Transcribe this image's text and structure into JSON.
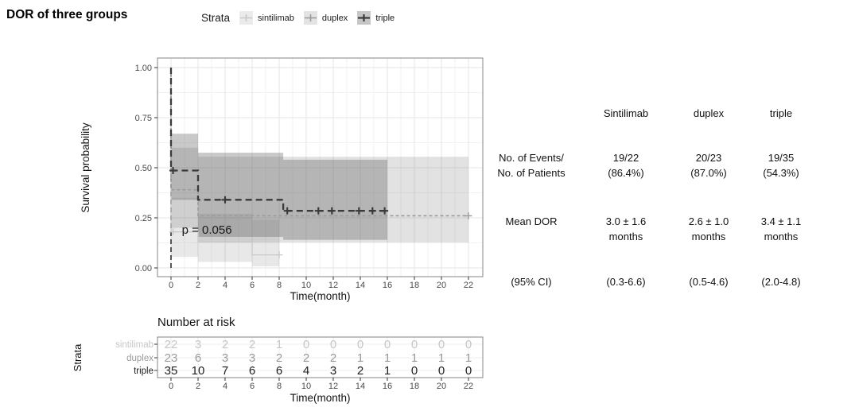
{
  "title": "DOR of three groups",
  "chart_data": {
    "type": "line",
    "subtype": "kaplan-meier-step",
    "title": "DOR of three groups",
    "xlabel": "Time(month)",
    "ylabel": "Survival probability",
    "legend_title": "Strata",
    "legend_position": "top",
    "grid": true,
    "xlim": [
      0,
      22
    ],
    "ylim": [
      0.0,
      1.0
    ],
    "x_ticks": [
      0,
      2,
      4,
      6,
      8,
      10,
      12,
      14,
      16,
      18,
      20,
      22
    ],
    "y_ticks": [
      0.0,
      0.25,
      0.5,
      0.75,
      1.0
    ],
    "y_tick_labels": [
      "0.00",
      "0.25",
      "0.50",
      "0.75",
      "1.00"
    ],
    "p_value_label": "p = 0.056",
    "p_value_xy": [
      0.8,
      0.19
    ],
    "vline_x": 0,
    "series": [
      {
        "name": "sintilimab",
        "color": "#c9c9c9",
        "key_bg": "#ebebeb",
        "dash": "",
        "width": 1.3,
        "ci_fill": "#6e6e6e",
        "ci_opacity": 0.16,
        "line": [
          [
            0,
            1.0
          ],
          [
            0,
            0.18
          ],
          [
            2,
            0.18
          ],
          [
            2,
            0.13
          ],
          [
            6,
            0.13
          ],
          [
            6,
            0.065
          ],
          [
            8,
            0.065
          ]
        ],
        "censors": [
          [
            0.15,
            0.18
          ],
          [
            8,
            0.065
          ]
        ],
        "ci": [
          [
            0,
            2,
            0.055,
            0.35
          ],
          [
            2,
            6,
            0.03,
            0.27
          ],
          [
            6,
            8,
            0.008,
            0.24
          ]
        ]
      },
      {
        "name": "duplex",
        "color": "#9b9b9b",
        "key_bg": "#e3e3e3",
        "dash": "4,3",
        "width": 1.6,
        "ci_fill": "#6e6e6e",
        "ci_opacity": 0.2,
        "line": [
          [
            0,
            1.0
          ],
          [
            0,
            0.39
          ],
          [
            2,
            0.39
          ],
          [
            2,
            0.26
          ],
          [
            22,
            0.26
          ]
        ],
        "censors": [
          [
            22,
            0.26
          ]
        ],
        "ci": [
          [
            0,
            2,
            0.2,
            0.6
          ],
          [
            2,
            22,
            0.127,
            0.555
          ]
        ]
      },
      {
        "name": "triple",
        "color": "#3a3a3a",
        "key_bg": "#c7c7c7",
        "dash": "8,5",
        "width": 2.3,
        "ci_fill": "#5a5a5a",
        "ci_opacity": 0.33,
        "line": [
          [
            0,
            1.0
          ],
          [
            0,
            0.486
          ],
          [
            2,
            0.486
          ],
          [
            2,
            0.34
          ],
          [
            8.3,
            0.34
          ],
          [
            8.3,
            0.285
          ],
          [
            16,
            0.285
          ]
        ],
        "censors": [
          [
            0.15,
            0.486
          ],
          [
            4,
            0.34
          ],
          [
            8.6,
            0.285
          ],
          [
            10.9,
            0.285
          ],
          [
            11.9,
            0.285
          ],
          [
            13.9,
            0.285
          ],
          [
            14.9,
            0.285
          ],
          [
            15.8,
            0.285
          ]
        ],
        "ci": [
          [
            0,
            2,
            0.34,
            0.67
          ],
          [
            2,
            8.3,
            0.155,
            0.575
          ],
          [
            8.3,
            16,
            0.14,
            0.54
          ]
        ]
      }
    ],
    "risk_table": {
      "title": "Number at risk",
      "ylabel": "Strata",
      "xlabel": "Time(month)",
      "times": [
        0,
        2,
        4,
        6,
        8,
        10,
        12,
        14,
        16,
        18,
        20,
        22
      ],
      "rows": [
        {
          "name": "sintilimab",
          "color": "#c6c6c6",
          "values": [
            22,
            3,
            2,
            2,
            1,
            0,
            0,
            0,
            0,
            0,
            0,
            0
          ]
        },
        {
          "name": "duplex",
          "color": "#9a9a9a",
          "values": [
            23,
            6,
            3,
            3,
            2,
            2,
            2,
            1,
            1,
            1,
            1,
            1
          ]
        },
        {
          "name": "triple",
          "color": "#1f1f1f",
          "values": [
            35,
            10,
            7,
            6,
            6,
            4,
            3,
            2,
            1,
            0,
            0,
            0
          ]
        }
      ]
    }
  },
  "stats_table": {
    "columns": [
      "Sintilimab",
      "duplex",
      "triple"
    ],
    "rows": [
      {
        "label": "No. of  Events/\nNo. of Patients",
        "values": [
          "19/22\n(86.4%)",
          "20/23\n(87.0%)",
          "19/35\n(54.3%)"
        ]
      },
      {
        "label": "Mean DOR",
        "values": [
          "3.0 ± 1.6\nmonths",
          "2.6 ± 1.0\nmonths",
          "3.4 ±  1.1\nmonths"
        ]
      },
      {
        "label": "(95%  CI)",
        "values": [
          "(0.3-6.6)",
          "(0.5-4.6)",
          "(2.0-4.8)"
        ]
      }
    ]
  }
}
